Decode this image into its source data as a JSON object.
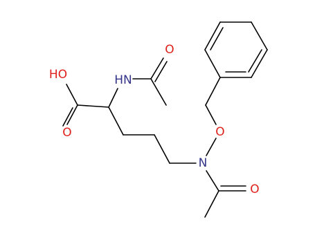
{
  "atoms": [
    {
      "label": "HO"
    },
    {
      "label": "O"
    },
    {
      "label": "HN"
    },
    {
      "label": "O"
    },
    {
      "label": "O"
    },
    {
      "label": "N"
    },
    {
      "label": "O"
    }
  ]
}
